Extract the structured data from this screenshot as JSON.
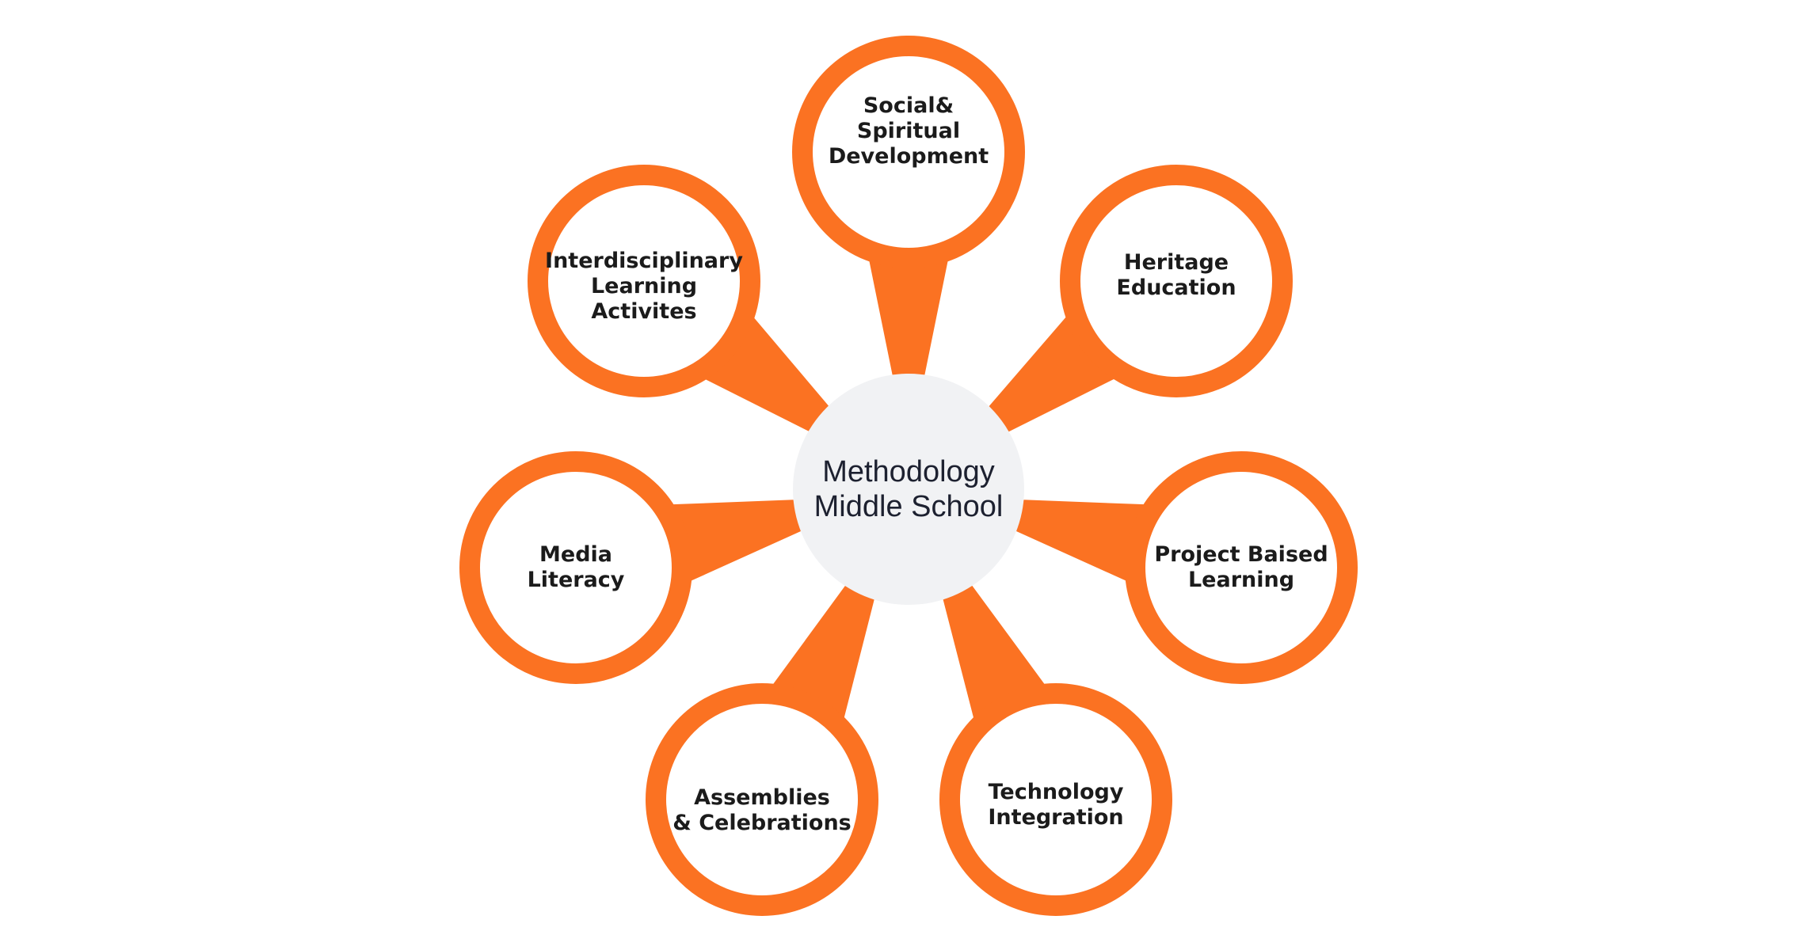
{
  "colors": {
    "accent": "#FB7222",
    "hub_fill": "#F1F2F4",
    "text": "#1B1B1B"
  },
  "hub": {
    "label": "Methodology\nMiddle School"
  },
  "nodes": [
    {
      "id": "social-spiritual-development",
      "label": "Social&\nSpiritual\nDevelopment"
    },
    {
      "id": "heritage-education",
      "label": "Heritage\nEducation"
    },
    {
      "id": "project-baised-learning",
      "label": "Project Baised\nLearning"
    },
    {
      "id": "technology-integration",
      "label": "Technology\nIntegration"
    },
    {
      "id": "assemblies-celebrations",
      "label": "Assemblies\n& Celebrations"
    },
    {
      "id": "media-literacy",
      "label": "Media\nLiteracy"
    },
    {
      "id": "interdisciplinary-learning-activites",
      "label": "Interdisciplinary\nLearning\nActivites"
    }
  ]
}
